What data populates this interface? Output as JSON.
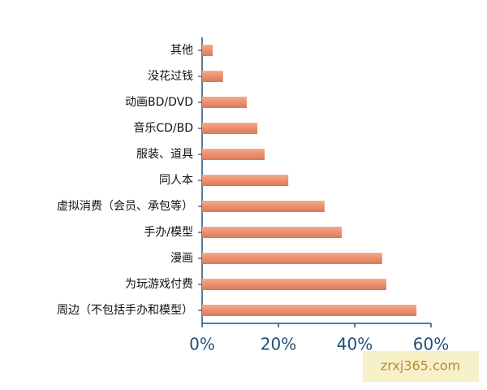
{
  "chart_data": {
    "type": "barh",
    "categories": [
      "其他",
      "没花过钱",
      "动画BD/DVD",
      "音乐CD/BD",
      "服装、道具",
      "同人本",
      "虚拟消费（会员、承包等）",
      "手办/模型",
      "漫画",
      "为玩游戏付费",
      "周边（不包括手办和模型）"
    ],
    "values": [
      2.8,
      5.5,
      11.7,
      14.5,
      16.4,
      22.6,
      32.1,
      36.6,
      47.2,
      48.3,
      56.2
    ],
    "color": "#ea906d",
    "xlim": [
      0,
      60
    ],
    "xticks": [
      {
        "value": 0,
        "label": "0%"
      },
      {
        "value": 20,
        "label": "20%"
      },
      {
        "value": 40,
        "label": "40%"
      },
      {
        "value": 60,
        "label": "60%"
      }
    ]
  },
  "watermark": "zrxj365.com"
}
